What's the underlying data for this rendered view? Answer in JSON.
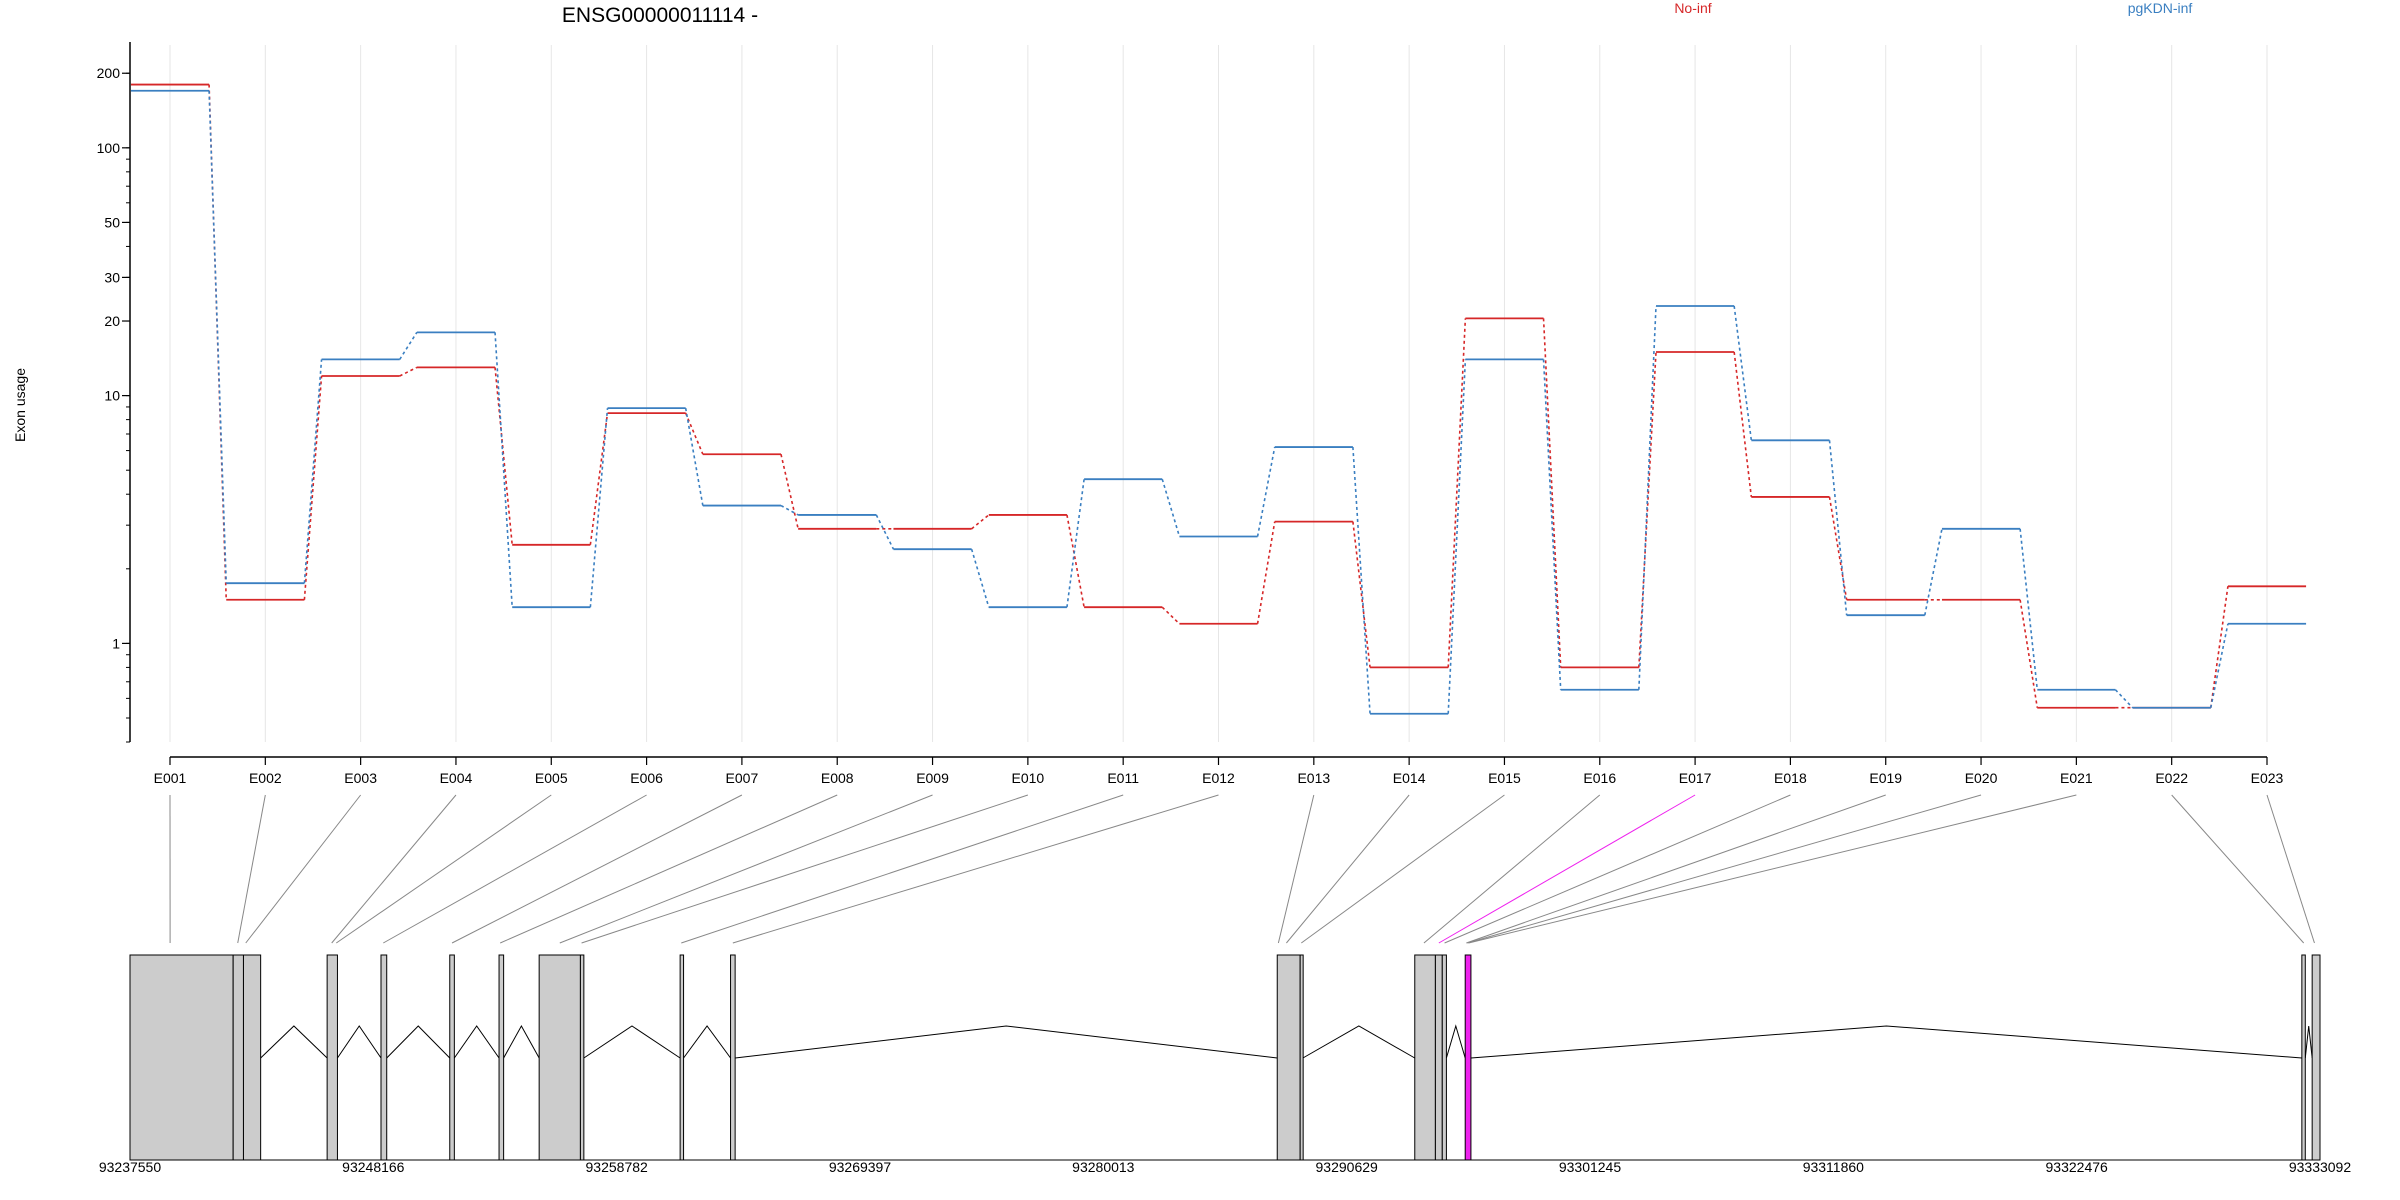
{
  "chart_data": {
    "type": "line",
    "title": "ENSG00000011114 -",
    "ylabel": "Exon usage",
    "y_scale": "log",
    "y_ticks": [
      1,
      10,
      20,
      30,
      50,
      100,
      200
    ],
    "categories": [
      "E001",
      "E002",
      "E003",
      "E004",
      "E005",
      "E006",
      "E007",
      "E008",
      "E009",
      "E010",
      "E011",
      "E012",
      "E013",
      "E014",
      "E015",
      "E016",
      "E017",
      "E018",
      "E019",
      "E020",
      "E021",
      "E022",
      "E023"
    ],
    "series": [
      {
        "name": "No-inf",
        "color": "#d62728",
        "values": [
          180,
          1.5,
          12,
          13,
          2.5,
          8.5,
          5.8,
          2.9,
          2.9,
          3.3,
          1.4,
          1.2,
          3.1,
          0.8,
          20.5,
          0.8,
          15,
          3.9,
          1.5,
          1.5,
          0.55,
          0.55,
          1.7
        ]
      },
      {
        "name": "pgKDN-inf",
        "color": "#3a7fc1",
        "values": [
          170,
          1.75,
          14,
          18,
          1.4,
          8.9,
          3.6,
          3.3,
          2.4,
          1.4,
          4.6,
          2.7,
          6.2,
          0.52,
          14,
          0.65,
          23,
          6.6,
          1.3,
          2.9,
          0.65,
          0.55,
          1.2
        ]
      }
    ],
    "gene_model": {
      "genomic_ticks": [
        "93237550",
        "93248166",
        "93258782",
        "93269397",
        "93280013",
        "93290629",
        "93301245",
        "93311860",
        "93322476",
        "93333092"
      ],
      "range": [
        93237550,
        93333092
      ],
      "highlight_color": "#ee22ee",
      "exon_color": "#cccccc",
      "exons": [
        {
          "start": 93237550,
          "end": 93242050
        },
        {
          "start": 93242050,
          "end": 93242500
        },
        {
          "start": 93242500,
          "end": 93243250
        },
        {
          "start": 93246150,
          "end": 93246600
        },
        {
          "start": 93248500,
          "end": 93248750
        },
        {
          "start": 93251500,
          "end": 93251700
        },
        {
          "start": 93253650,
          "end": 93253850
        },
        {
          "start": 93255400,
          "end": 93257200
        },
        {
          "start": 93257200,
          "end": 93257350
        },
        {
          "start": 93261550,
          "end": 93261700
        },
        {
          "start": 93263750,
          "end": 93263950
        },
        {
          "start": 93287600,
          "end": 93288600
        },
        {
          "start": 93288600,
          "end": 93288720
        },
        {
          "start": 93293600,
          "end": 93294500
        },
        {
          "start": 93294500,
          "end": 93294800
        },
        {
          "start": 93294800,
          "end": 93294980
        },
        {
          "start": 93295800,
          "end": 93296050
        },
        {
          "start": 93332300,
          "end": 93332450
        },
        {
          "start": 93332750,
          "end": 93333092
        }
      ],
      "intron_arcs": [
        [
          93243250,
          93246150
        ],
        [
          93246600,
          93248500
        ],
        [
          93248750,
          93251500
        ],
        [
          93251700,
          93253650
        ],
        [
          93253850,
          93255400
        ],
        [
          93257350,
          93261550
        ],
        [
          93261700,
          93263750
        ],
        [
          93263950,
          93287600
        ],
        [
          93288720,
          93293600
        ],
        [
          93294980,
          93295800
        ],
        [
          93296050,
          93332300
        ],
        [
          93332450,
          93332750
        ]
      ],
      "connector_targets": [
        93239300,
        93242250,
        93242600,
        93246350,
        93246550,
        93248600,
        93251600,
        93253700,
        93256300,
        93257250,
        93261600,
        93263850,
        93287650,
        93288000,
        93288650,
        93294000,
        93294650,
        93294900,
        93295850,
        93295900,
        93295950,
        93332380,
        93332850
      ],
      "highlight_exon_index": 16
    }
  }
}
